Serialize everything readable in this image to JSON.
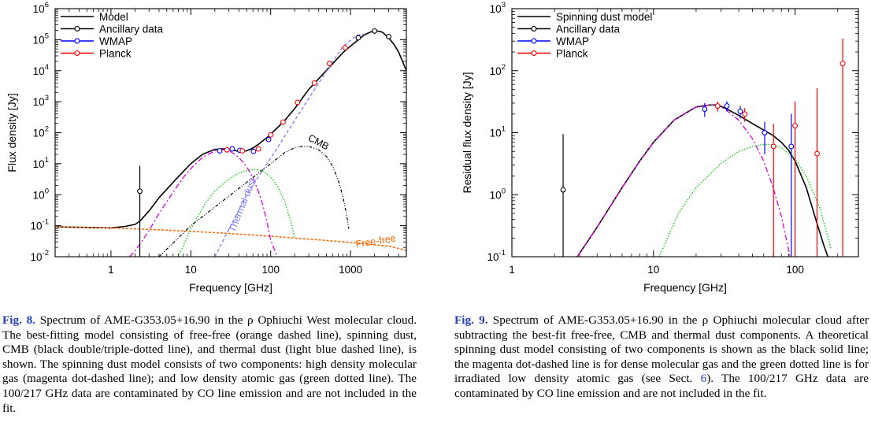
{
  "figures": [
    {
      "caption": {
        "label": "Fig. 8.",
        "text": "Spectrum of AME-G353.05+16.90 in the ρ Ophiuchi West molecular cloud. The best-fitting model consisting of free-free (orange dashed line), spinning dust, CMB (black double/triple-dotted line), and thermal dust (light blue dashed line), is shown. The spinning dust model consists of two components: high density molecular gas (magenta dot-dashed line); and low density atomic gas (green dotted line). The 100/217 GHz data are contaminated by CO line emission and are not included in the fit."
      }
    },
    {
      "caption": {
        "label": "Fig. 9.",
        "text_before": "Spectrum of AME-G353.05+16.90 in the ρ Ophiuchi molecular cloud after subtracting the best-fit free-free, CMB and thermal dust components. A theoretical spinning dust model consisting of two components is shown as the black solid line; the magenta dot-dashed line is for dense molecular gas and the green dotted line is for irradiated low density atomic gas (see Sect. ",
        "sect": "6",
        "text_after": "). The 100/217 GHz data are contaminated by CO line emission and are not included in the fit."
      }
    }
  ],
  "chart_data": [
    {
      "type": "line",
      "title": "",
      "xlabel": "Frequency [GHz]",
      "ylabel": "Flux density [Jy]",
      "x_scale": "log",
      "y_scale": "log",
      "xlim": [
        0.2,
        5000
      ],
      "ylim": [
        0.01,
        1000000
      ],
      "xticks": [
        {
          "v": 1,
          "label": "1"
        },
        {
          "v": 10,
          "label": "10"
        },
        {
          "v": 100,
          "label": "100"
        },
        {
          "v": 1000,
          "label": "1000"
        }
      ],
      "yticks": [
        {
          "v": 0.01,
          "b": "10",
          "e": "-2"
        },
        {
          "v": 0.1,
          "b": "10",
          "e": "-1"
        },
        {
          "v": 1,
          "b": "10",
          "e": "0"
        },
        {
          "v": 10,
          "b": "10",
          "e": "1"
        },
        {
          "v": 100,
          "b": "10",
          "e": "2"
        },
        {
          "v": 1000,
          "b": "10",
          "e": "3"
        },
        {
          "v": 10000,
          "b": "10",
          "e": "4"
        },
        {
          "v": 100000,
          "b": "10",
          "e": "5"
        },
        {
          "v": 1000000,
          "b": "10",
          "e": "6"
        }
      ],
      "legend_position": "top-left",
      "legend": [
        {
          "label": "Model",
          "color": "#000000",
          "marker": false
        },
        {
          "label": "Ancillary data",
          "color": "#000000",
          "marker": true
        },
        {
          "label": "WMAP",
          "color": "#0000ff",
          "marker": true
        },
        {
          "label": "Planck",
          "color": "#ff0000",
          "marker": true
        }
      ],
      "curves": [
        {
          "id": "model",
          "color": "#000000",
          "dash": "",
          "width": 1.6,
          "x": [
            0.2,
            0.5,
            1,
            1.5,
            2,
            2.3,
            3,
            4,
            6,
            8,
            10,
            14,
            20,
            25,
            28,
            32,
            40,
            50,
            60,
            70,
            80,
            90,
            100,
            120,
            150,
            200,
            300,
            400,
            600,
            800,
            1000,
            1500,
            2000,
            2500,
            3000,
            3500,
            4000,
            5000
          ],
          "y": [
            0.092,
            0.088,
            0.085,
            0.095,
            0.11,
            0.14,
            0.3,
            0.8,
            2.5,
            5.5,
            10,
            20,
            29,
            30,
            30,
            28,
            25,
            26,
            32,
            42,
            55,
            70,
            90,
            140,
            250,
            600,
            2500,
            5500,
            17000,
            38000,
            62000,
            145000,
            200000,
            175000,
            115000,
            70000,
            40000,
            10000
          ]
        },
        {
          "id": "free-free",
          "color": "#ff6600",
          "dash": "3,2",
          "width": 1.6,
          "x": [
            0.2,
            1,
            5,
            10,
            30,
            100,
            300,
            1000,
            3000,
            5000
          ],
          "y": [
            0.092,
            0.085,
            0.072,
            0.066,
            0.056,
            0.046,
            0.037,
            0.029,
            0.022,
            0.016
          ]
        },
        {
          "id": "spinning-dust-molecular",
          "color": "#e000e0",
          "dash": "7,3,2,3",
          "width": 1.3,
          "x": [
            1.7,
            2,
            3,
            4,
            6,
            8,
            10,
            14,
            20,
            25,
            28,
            32,
            40,
            50,
            60,
            70,
            80,
            90,
            100,
            120
          ],
          "y": [
            0.01,
            0.015,
            0.07,
            0.25,
            1.2,
            3.5,
            7,
            16,
            26,
            28,
            28,
            24,
            16,
            8,
            3.5,
            1.3,
            0.45,
            0.13,
            0.035,
            0.01
          ]
        },
        {
          "id": "spinning-dust-atomic",
          "color": "#00cc00",
          "dash": "1.5,2",
          "width": 1.3,
          "x": [
            7,
            10,
            15,
            20,
            30,
            40,
            50,
            60,
            70,
            80,
            100,
            120,
            150,
            180,
            200
          ],
          "y": [
            0.01,
            0.08,
            0.5,
            1.3,
            3.2,
            5,
            6,
            6.5,
            6.4,
            5.7,
            3.8,
            2,
            0.6,
            0.13,
            0.04
          ]
        },
        {
          "id": "cmb",
          "color": "#000000",
          "dash": "4,2,1,2,1,2",
          "width": 1.2,
          "x": [
            4,
            10,
            20,
            50,
            100,
            150,
            200,
            250,
            300,
            400,
            500,
            600,
            700,
            800,
            900,
            950
          ],
          "y": [
            0.01,
            0.1,
            0.4,
            2.5,
            10,
            23,
            33,
            36,
            36,
            28,
            17,
            8,
            3,
            0.9,
            0.2,
            0.08
          ]
        },
        {
          "id": "thermal-dust",
          "color": "#8080ff",
          "dash": "4,3",
          "width": 1.4,
          "x": [
            20,
            50,
            100,
            200,
            400,
            800,
            1200,
            1500
          ],
          "y": [
            0.01,
            1,
            15,
            250,
            4000,
            60000,
            140000,
            150000
          ]
        }
      ],
      "points": [
        {
          "series": "Ancillary data",
          "color": "#000000",
          "x": 2.3,
          "y": 1.3,
          "err_lo": 0.01,
          "err_hi": 8.5
        },
        {
          "series": "Ancillary data",
          "color": "#000000",
          "x": 1250,
          "y": 115000
        },
        {
          "series": "Ancillary data",
          "color": "#000000",
          "x": 2000,
          "y": 190000
        },
        {
          "series": "Ancillary data",
          "color": "#000000",
          "x": 3000,
          "y": 125000
        },
        {
          "series": "WMAP",
          "color": "#0000ff",
          "x": 23,
          "y": 26
        },
        {
          "series": "WMAP",
          "color": "#0000ff",
          "x": 33,
          "y": 30
        },
        {
          "series": "WMAP",
          "color": "#0000ff",
          "x": 41,
          "y": 27
        },
        {
          "series": "WMAP",
          "color": "#0000ff",
          "x": 61,
          "y": 25
        },
        {
          "series": "WMAP",
          "color": "#0000ff",
          "x": 94,
          "y": 60
        },
        {
          "series": "Planck",
          "color": "#ff0000",
          "x": 28.4,
          "y": 28
        },
        {
          "series": "Planck",
          "color": "#ff0000",
          "x": 44.1,
          "y": 26
        },
        {
          "series": "Planck",
          "color": "#ff0000",
          "x": 70.4,
          "y": 30
        },
        {
          "series": "Planck",
          "color": "#ff0000",
          "x": 100,
          "y": 85
        },
        {
          "series": "Planck",
          "color": "#ff0000",
          "x": 143,
          "y": 220
        },
        {
          "series": "Planck",
          "color": "#ff0000",
          "x": 217,
          "y": 950
        },
        {
          "series": "Planck",
          "color": "#ff0000",
          "x": 353,
          "y": 4000
        },
        {
          "series": "Planck",
          "color": "#ff0000",
          "x": 545,
          "y": 17000
        },
        {
          "series": "Planck",
          "color": "#ff0000",
          "x": 857,
          "y": 55000
        }
      ],
      "annotations": [
        {
          "text": "CMB",
          "x": 380,
          "y": 40,
          "rotate": 28,
          "color": "#000000"
        },
        {
          "text": "Thermal dust",
          "x": 48,
          "y": 0.42,
          "rotate": -68,
          "color": "#8080ff"
        },
        {
          "text": "Free-free",
          "x": 2100,
          "y": 0.025,
          "rotate": -9,
          "color": "#ff6600"
        }
      ]
    },
    {
      "type": "line",
      "title": "",
      "xlabel": "Frequency [GHz]",
      "ylabel": "Residual flux density [Jy]",
      "x_scale": "log",
      "y_scale": "log",
      "xlim": [
        1,
        280
      ],
      "ylim": [
        0.1,
        1000
      ],
      "xticks": [
        {
          "v": 1,
          "label": "1"
        },
        {
          "v": 10,
          "label": "10"
        },
        {
          "v": 100,
          "label": "100"
        }
      ],
      "yticks": [
        {
          "v": 0.1,
          "b": "10",
          "e": "-1"
        },
        {
          "v": 1,
          "b": "10",
          "e": "0"
        },
        {
          "v": 10,
          "b": "10",
          "e": "1"
        },
        {
          "v": 100,
          "b": "10",
          "e": "2"
        },
        {
          "v": 1000,
          "b": "10",
          "e": "3"
        }
      ],
      "legend_position": "top-left",
      "legend": [
        {
          "label": "Spinning dust model",
          "color": "#000000",
          "marker": false
        },
        {
          "label": "Ancillary data",
          "color": "#000000",
          "marker": true
        },
        {
          "label": "WMAP",
          "color": "#0000ff",
          "marker": true
        },
        {
          "label": "Planck",
          "color": "#ff0000",
          "marker": true
        }
      ],
      "curves": [
        {
          "id": "spinning-dust-model",
          "color": "#000000",
          "dash": "",
          "width": 1.6,
          "x": [
            2.9,
            4,
            6,
            8,
            10,
            14,
            20,
            25,
            28,
            32,
            40,
            50,
            60,
            70,
            80,
            90,
            100,
            120,
            140,
            160,
            180
          ],
          "y": [
            0.1,
            0.3,
            1.3,
            3.5,
            7,
            16,
            26,
            28,
            28,
            25,
            19,
            14,
            11,
            9,
            7,
            5.2,
            3.5,
            1.3,
            0.4,
            0.15,
            0.07
          ]
        },
        {
          "id": "spinning-dust-molecular",
          "color": "#e000e0",
          "dash": "7,3,2,3",
          "width": 1.3,
          "x": [
            2.9,
            4,
            6,
            8,
            10,
            14,
            20,
            25,
            28,
            32,
            40,
            50,
            60,
            70,
            80,
            90,
            95
          ],
          "y": [
            0.1,
            0.3,
            1.3,
            3.5,
            7,
            16,
            26,
            28,
            28,
            24,
            16,
            8,
            3.5,
            1.3,
            0.45,
            0.13,
            0.07
          ]
        },
        {
          "id": "spinning-dust-atomic",
          "color": "#00cc00",
          "dash": "1.5,2",
          "width": 1.3,
          "x": [
            11,
            15,
            20,
            30,
            40,
            50,
            60,
            70,
            80,
            100,
            120,
            150,
            180
          ],
          "y": [
            0.1,
            0.5,
            1.3,
            3.2,
            5,
            6,
            6.5,
            6.4,
            5.7,
            3.8,
            2,
            0.6,
            0.13
          ]
        }
      ],
      "points": [
        {
          "series": "Ancillary data",
          "color": "#000000",
          "x": 2.3,
          "y": 1.2,
          "err_lo": 0.08,
          "err_hi": 9.5
        },
        {
          "series": "WMAP",
          "color": "#0000ff",
          "x": 23,
          "y": 24,
          "err_lo": 18,
          "err_hi": 30
        },
        {
          "series": "WMAP",
          "color": "#0000ff",
          "x": 33,
          "y": 27,
          "err_lo": 22,
          "err_hi": 32
        },
        {
          "series": "WMAP",
          "color": "#0000ff",
          "x": 41,
          "y": 22,
          "err_lo": 17,
          "err_hi": 27
        },
        {
          "series": "WMAP",
          "color": "#0000ff",
          "x": 61,
          "y": 10,
          "err_lo": 4.5,
          "err_hi": 15
        },
        {
          "series": "WMAP",
          "color": "#0000ff",
          "x": 94,
          "y": 6,
          "err_lo": 0.1,
          "err_hi": 20
        },
        {
          "series": "Planck",
          "color": "#ff0000",
          "x": 28.4,
          "y": 27,
          "err_lo": 22,
          "err_hi": 32
        },
        {
          "series": "Planck",
          "color": "#ff0000",
          "x": 44.1,
          "y": 20,
          "err_lo": 15,
          "err_hi": 25
        },
        {
          "series": "Planck",
          "color": "#ff0000",
          "x": 70.4,
          "y": 6,
          "err_lo": 0.1,
          "err_hi": 14
        },
        {
          "series": "Planck",
          "color": "#ff0000",
          "x": 100,
          "y": 13,
          "err_lo": 0.1,
          "err_hi": 32
        },
        {
          "series": "Planck",
          "color": "#ff0000",
          "x": 143,
          "y": 4.6,
          "err_lo": 0.1,
          "err_hi": 52
        },
        {
          "series": "Planck",
          "color": "#ff0000",
          "x": 217,
          "y": 130,
          "err_lo": 0.1,
          "err_hi": 330
        }
      ],
      "annotations": []
    }
  ]
}
